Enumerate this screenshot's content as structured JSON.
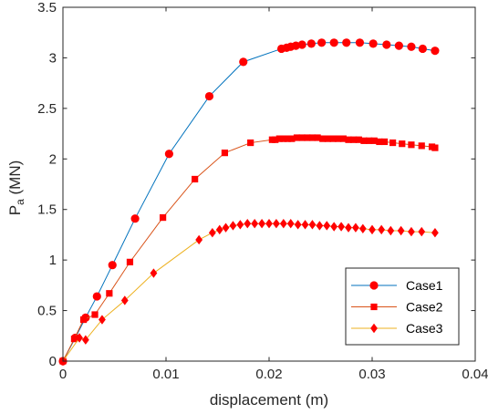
{
  "chart_data": {
    "type": "line",
    "title": "",
    "xlabel": "displacement (m)",
    "ylabel_main": "P",
    "ylabel_sub": "a",
    "ylabel_unit": " (MN)",
    "xlim": [
      0,
      0.04
    ],
    "ylim": [
      0,
      3.5
    ],
    "xticks": [
      0,
      0.01,
      0.02,
      0.03,
      0.04
    ],
    "xtick_labels": [
      "0",
      "0.01",
      "0.02",
      "0.03",
      "0.04"
    ],
    "yticks": [
      0,
      0.5,
      1,
      1.5,
      2,
      2.5,
      3,
      3.5
    ],
    "ytick_labels": [
      "0",
      "0.5",
      "1",
      "1.5",
      "2",
      "2.5",
      "3",
      "3.5"
    ],
    "grid": false,
    "legend_position": "bottom-right",
    "series": [
      {
        "name": "Case1",
        "line_color": "#0072BD",
        "marker": "circle",
        "marker_color": "#FF0000",
        "x": [
          0,
          0.0012,
          0.0022,
          0.0033,
          0.0048,
          0.007,
          0.0103,
          0.0142,
          0.0175,
          0.0212,
          0.0217,
          0.0221,
          0.0226,
          0.0232,
          0.0241,
          0.0251,
          0.0263,
          0.0275,
          0.0288,
          0.0301,
          0.0314,
          0.0326,
          0.0338,
          0.0349,
          0.0361
        ],
        "y": [
          0,
          0.23,
          0.43,
          0.64,
          0.95,
          1.41,
          2.05,
          2.62,
          2.96,
          3.09,
          3.1,
          3.11,
          3.12,
          3.13,
          3.14,
          3.15,
          3.15,
          3.15,
          3.15,
          3.14,
          3.13,
          3.12,
          3.11,
          3.09,
          3.07
        ]
      },
      {
        "name": "Case2",
        "line_color": "#D95319",
        "marker": "square",
        "marker_color": "#FF0000",
        "x": [
          0,
          0.0011,
          0.002,
          0.0031,
          0.0045,
          0.0065,
          0.0097,
          0.0128,
          0.0157,
          0.0182,
          0.0203,
          0.0206,
          0.021,
          0.0214,
          0.0218,
          0.0222,
          0.0227,
          0.0232,
          0.0237,
          0.0242,
          0.0247,
          0.0252,
          0.0257,
          0.0262,
          0.0267,
          0.0272,
          0.0277,
          0.0282,
          0.0287,
          0.0292,
          0.0297,
          0.0302,
          0.0307,
          0.0312,
          0.032,
          0.0329,
          0.0338,
          0.0348,
          0.0358,
          0.0361
        ],
        "y": [
          0,
          0.22,
          0.41,
          0.46,
          0.67,
          0.98,
          1.42,
          1.8,
          2.06,
          2.16,
          2.19,
          2.19,
          2.2,
          2.2,
          2.2,
          2.2,
          2.21,
          2.21,
          2.21,
          2.21,
          2.21,
          2.2,
          2.2,
          2.2,
          2.2,
          2.2,
          2.19,
          2.19,
          2.19,
          2.18,
          2.18,
          2.18,
          2.17,
          2.17,
          2.16,
          2.15,
          2.14,
          2.13,
          2.12,
          2.11
        ]
      },
      {
        "name": "Case3",
        "line_color": "#EDB120",
        "marker": "diamond",
        "marker_color": "#FF0000",
        "x": [
          0,
          0.0016,
          0.0022,
          0.0038,
          0.006,
          0.0088,
          0.0132,
          0.0145,
          0.0152,
          0.0158,
          0.0165,
          0.0172,
          0.0179,
          0.0186,
          0.0193,
          0.02,
          0.0207,
          0.0214,
          0.0221,
          0.0228,
          0.0235,
          0.0242,
          0.0249,
          0.0256,
          0.0263,
          0.027,
          0.0277,
          0.0284,
          0.0291,
          0.03,
          0.0309,
          0.0318,
          0.0328,
          0.0338,
          0.0348,
          0.0361
        ],
        "y": [
          0,
          0.23,
          0.21,
          0.41,
          0.6,
          0.87,
          1.2,
          1.27,
          1.3,
          1.32,
          1.34,
          1.35,
          1.36,
          1.36,
          1.36,
          1.36,
          1.36,
          1.36,
          1.36,
          1.35,
          1.35,
          1.35,
          1.34,
          1.34,
          1.33,
          1.33,
          1.32,
          1.32,
          1.31,
          1.3,
          1.3,
          1.29,
          1.29,
          1.28,
          1.28,
          1.27
        ]
      }
    ]
  }
}
